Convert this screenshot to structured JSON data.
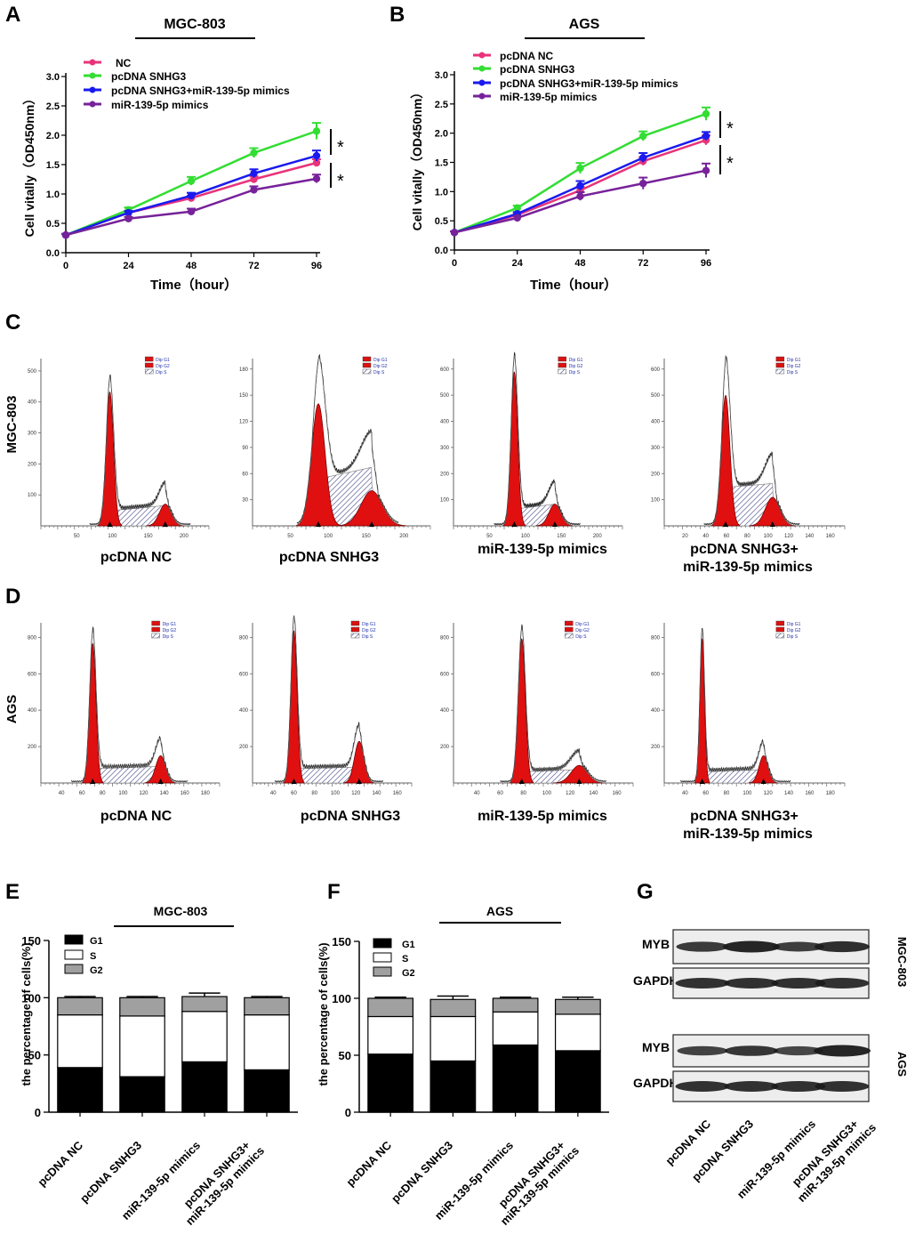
{
  "panels": {
    "A": "A",
    "B": "B",
    "C": "C",
    "D": "D",
    "E": "E",
    "F": "F",
    "G": "G"
  },
  "lines": [
    {
      "id": "A",
      "group": "MGC-803",
      "ylabel": "Cell vitally（OD450nm）",
      "xlabel": "Time（hour）",
      "xticks": [
        0,
        24,
        48,
        72,
        96
      ],
      "yticks": [
        "0.0",
        "0.5",
        "1.0",
        "1.5",
        "2.0",
        "2.5",
        "3.0"
      ],
      "legend": [
        "NC",
        "pcDNA SNHG3",
        "pcDNA SNHG3+miR-139-5p mimics",
        "miR-139-5p mimics"
      ],
      "sig": [
        "*",
        "*"
      ],
      "series": [
        {
          "name": "NC",
          "color": "#e8337a",
          "values": [
            0.3,
            0.68,
            0.93,
            1.25,
            1.53
          ],
          "err": [
            0.02,
            0.03,
            0.04,
            0.05,
            0.06
          ]
        },
        {
          "name": "pcDNA SNHG3",
          "color": "#33dd33",
          "values": [
            0.3,
            0.73,
            1.22,
            1.7,
            2.07
          ],
          "err": [
            0.02,
            0.04,
            0.07,
            0.08,
            0.14
          ]
        },
        {
          "name": "pcDNA SNHG3+miR-139-5p mimics",
          "color": "#1a1aee",
          "values": [
            0.3,
            0.68,
            0.97,
            1.35,
            1.65
          ],
          "err": [
            0.02,
            0.03,
            0.05,
            0.07,
            0.09
          ]
        },
        {
          "name": "miR-139-5p mimics",
          "color": "#77229a",
          "values": [
            0.3,
            0.58,
            0.7,
            1.07,
            1.26
          ],
          "err": [
            0.02,
            0.03,
            0.05,
            0.06,
            0.07
          ]
        }
      ]
    },
    {
      "id": "B",
      "group": "AGS",
      "ylabel": "Cell vitally（OD450nm）",
      "xlabel": "Time（hour）",
      "xticks": [
        0,
        24,
        48,
        72,
        96
      ],
      "yticks": [
        "0.0",
        "0.5",
        "1.0",
        "1.5",
        "2.0",
        "2.5",
        "3.0"
      ],
      "legend": [
        "pcDNA NC",
        "pcDNA SNHG3",
        "pcDNA SNHG3+miR-139-5p mimics",
        "miR-139-5p mimics"
      ],
      "sig": [
        "*",
        "*"
      ],
      "series": [
        {
          "name": "pcDNA NC",
          "color": "#e8337a",
          "values": [
            0.3,
            0.6,
            1.02,
            1.52,
            1.88
          ],
          "err": [
            0.02,
            0.03,
            0.06,
            0.07,
            0.08
          ]
        },
        {
          "name": "pcDNA SNHG3",
          "color": "#33dd33",
          "values": [
            0.3,
            0.72,
            1.4,
            1.95,
            2.33
          ],
          "err": [
            0.02,
            0.04,
            0.09,
            0.08,
            0.11
          ]
        },
        {
          "name": "pcDNA SNHG3+miR-139-5p mimics",
          "color": "#1a1aee",
          "values": [
            0.3,
            0.62,
            1.1,
            1.58,
            1.95
          ],
          "err": [
            0.02,
            0.03,
            0.08,
            0.08,
            0.07
          ]
        },
        {
          "name": "miR-139-5p mimics",
          "color": "#77229a",
          "values": [
            0.3,
            0.55,
            0.92,
            1.14,
            1.36
          ],
          "err": [
            0.02,
            0.03,
            0.07,
            0.1,
            0.12
          ]
        }
      ]
    }
  ],
  "flow": {
    "row_labels": [
      "MGC-803",
      "AGS"
    ],
    "legend": [
      "Dip G1",
      "Dip G2",
      "Dip S"
    ],
    "captions": [
      "pcDNA  NC",
      "pcDNA  SNHG3",
      "miR-139-5p mimics",
      "pcDNA  SNHG3+",
      "miR-139-5p mimics"
    ],
    "rows": [
      {
        "yticks": [
          [
            "100",
            "200",
            "300",
            "400",
            "500"
          ],
          [
            "30",
            "60",
            "90",
            "120",
            "150",
            "180"
          ],
          [
            "100",
            "200",
            "300",
            "400",
            "500",
            "600"
          ],
          [
            "100",
            "200",
            "300",
            "400",
            "500",
            "600"
          ]
        ],
        "xticks": [
          [
            "50",
            "100",
            "150",
            "200"
          ],
          [
            "50",
            "100",
            "150",
            "200"
          ],
          [
            "50",
            "100",
            "150",
            "200"
          ],
          [
            "20",
            "40",
            "60",
            "80",
            "100",
            "120",
            "140",
            "160"
          ]
        ]
      },
      {
        "yticks": [
          [
            "200",
            "400",
            "600",
            "800"
          ],
          [
            "200",
            "400",
            "600",
            "800"
          ],
          [
            "200",
            "400",
            "600",
            "800"
          ],
          [
            "200",
            "400",
            "600",
            "800"
          ]
        ],
        "xticks": [
          [
            "40",
            "60",
            "80",
            "100",
            "120",
            "140",
            "160",
            "180"
          ],
          [
            "40",
            "60",
            "80",
            "100",
            "120",
            "140",
            "160"
          ],
          [
            "40",
            "60",
            "80",
            "100",
            "120",
            "140",
            "160"
          ],
          [
            "40",
            "60",
            "80",
            "100",
            "120",
            "140",
            "160",
            "180"
          ]
        ]
      }
    ]
  },
  "chart_data": [
    {
      "type": "line",
      "title": "MGC-803",
      "xlabel": "Time（hour）",
      "ylabel": "Cell vitally（OD450nm）",
      "x": [
        0,
        24,
        48,
        72,
        96
      ],
      "ylim": [
        0,
        3.0
      ],
      "series": [
        {
          "name": "NC",
          "values": [
            0.3,
            0.68,
            0.93,
            1.25,
            1.53
          ]
        },
        {
          "name": "pcDNA SNHG3",
          "values": [
            0.3,
            0.73,
            1.22,
            1.7,
            2.07
          ]
        },
        {
          "name": "pcDNA SNHG3+miR-139-5p mimics",
          "values": [
            0.3,
            0.68,
            0.97,
            1.35,
            1.65
          ]
        },
        {
          "name": "miR-139-5p mimics",
          "values": [
            0.3,
            0.58,
            0.7,
            1.07,
            1.26
          ]
        }
      ]
    },
    {
      "type": "line",
      "title": "AGS",
      "xlabel": "Time（hour）",
      "ylabel": "Cell vitally（OD450nm）",
      "x": [
        0,
        24,
        48,
        72,
        96
      ],
      "ylim": [
        0,
        3.0
      ],
      "series": [
        {
          "name": "pcDNA NC",
          "values": [
            0.3,
            0.6,
            1.02,
            1.52,
            1.88
          ]
        },
        {
          "name": "pcDNA SNHG3",
          "values": [
            0.3,
            0.72,
            1.4,
            1.95,
            2.33
          ]
        },
        {
          "name": "pcDNA SNHG3+miR-139-5p mimics",
          "values": [
            0.3,
            0.62,
            1.1,
            1.58,
            1.95
          ]
        },
        {
          "name": "miR-139-5p mimics",
          "values": [
            0.3,
            0.55,
            0.92,
            1.14,
            1.36
          ]
        }
      ]
    },
    {
      "type": "bar",
      "stacked": true,
      "title": "MGC-803",
      "ylabel": "the percentage of cells(%)",
      "ylim": [
        0,
        150
      ],
      "yticks": [
        "0",
        "50",
        "100",
        "150"
      ],
      "categories": [
        "pcDNA NC",
        "pcDNA SNHG3",
        "miR-139-5p mimics",
        "pcDNA SNHG3+ miR-139-5p mimics"
      ],
      "series": [
        {
          "name": "G1",
          "color": "#000000",
          "values": [
            39,
            31,
            44,
            37
          ]
        },
        {
          "name": "S",
          "color": "#ffffff",
          "values": [
            46,
            53,
            44,
            48
          ]
        },
        {
          "name": "G2",
          "color": "#a0a0a0",
          "values": [
            15,
            16,
            13,
            15
          ]
        }
      ],
      "errtop": [
        1,
        1,
        3,
        1
      ]
    },
    {
      "type": "bar",
      "stacked": true,
      "title": "AGS",
      "ylabel": "the percentage of cells(%)",
      "ylim": [
        0,
        150
      ],
      "yticks": [
        "0",
        "50",
        "100",
        "150"
      ],
      "categories": [
        "pcDNA NC",
        "pcDNA SNHG3",
        "miR-139-5p mimics",
        "pcDNA SNHG3+ miR-139-5p mimics"
      ],
      "series": [
        {
          "name": "G1",
          "color": "#000000",
          "values": [
            51,
            45,
            59,
            54
          ]
        },
        {
          "name": "S",
          "color": "#ffffff",
          "values": [
            33,
            39,
            29,
            32
          ]
        },
        {
          "name": "G2",
          "color": "#a0a0a0",
          "values": [
            16,
            15,
            12,
            13
          ]
        }
      ],
      "errtop": [
        1,
        3,
        1,
        2
      ]
    }
  ],
  "blot": {
    "rows": [
      {
        "label": "MYB",
        "intensity": [
          0.75,
          1.0,
          0.7,
          0.9
        ]
      },
      {
        "label": "GAPDH",
        "intensity": [
          0.85,
          0.85,
          0.85,
          0.85
        ]
      },
      {
        "label": "MYB",
        "intensity": [
          0.65,
          0.8,
          0.6,
          1.0
        ]
      },
      {
        "label": "GAPDH",
        "intensity": [
          0.85,
          0.85,
          0.85,
          0.85
        ]
      }
    ],
    "side_labels": [
      "MGC-803",
      "AGS"
    ],
    "lanes": [
      "pcDNA NC",
      "pcDNA SNHG3",
      "miR-139-5p mimics",
      "pcDNA SNHG3+",
      "miR-139-5p mimics"
    ]
  }
}
